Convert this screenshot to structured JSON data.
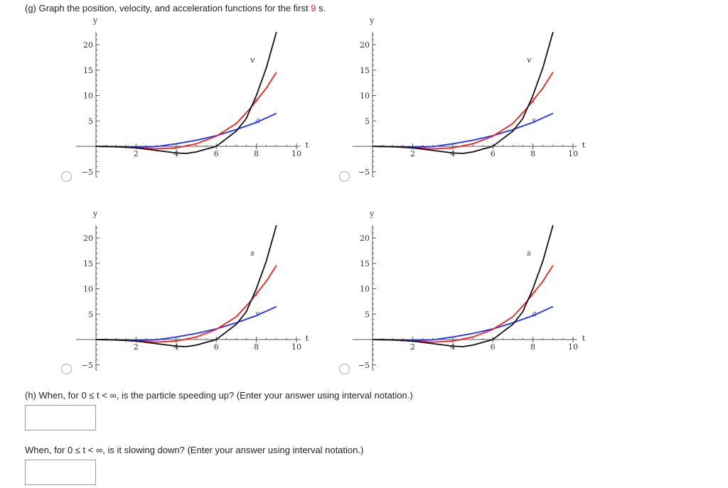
{
  "question_g": {
    "prefix": "(g) Graph the position, velocity, and acceleration functions for the first ",
    "highlight": "9",
    "suffix": " s."
  },
  "colors": {
    "black": "#111111",
    "red": "#f02020",
    "blue": "#2030f0"
  },
  "chart_data": [
    {
      "type": "line",
      "xlabel": "t",
      "ylabel": "y",
      "xticks": [
        2,
        4,
        6,
        8,
        10
      ],
      "yticks": [
        -5,
        5,
        10,
        15,
        20
      ],
      "xlim": [
        -1,
        10.2
      ],
      "ylim": [
        -6,
        22.5
      ],
      "curves": {
        "black": {
          "t": [
            0,
            1,
            2,
            3,
            4,
            4.5,
            5,
            6,
            7,
            7.5,
            8,
            8.5,
            9
          ],
          "y": [
            0,
            -0.05,
            -0.3,
            -0.8,
            -1.3,
            -1.4,
            -1.1,
            0,
            3,
            5.5,
            10,
            15.5,
            22.5
          ]
        },
        "red": {
          "t": [
            0,
            1,
            2,
            3,
            4,
            5,
            6,
            7,
            7.7,
            8,
            8.5,
            9
          ],
          "y": [
            0,
            -0.1,
            -0.3,
            -0.5,
            -0.3,
            0.5,
            2,
            4.5,
            7.5,
            9,
            11.5,
            14.6
          ]
        },
        "blue": {
          "t": [
            0,
            1,
            2,
            3,
            4,
            5,
            6,
            7,
            8,
            9
          ],
          "y": [
            0,
            -0.1,
            -0.2,
            -0.05,
            0.5,
            1.2,
            2.1,
            3.3,
            4.7,
            6.5
          ]
        }
      },
      "labels": {
        "black": "v",
        "red": "s",
        "blue": "a"
      }
    },
    {
      "labels": {
        "black": "v",
        "red": "a",
        "blue": "s"
      }
    },
    {
      "labels": {
        "black": "s",
        "red": "a",
        "blue": "v"
      }
    },
    {
      "labels": {
        "black": "s",
        "red": "v",
        "blue": "a"
      }
    }
  ],
  "question_h": {
    "text": "(h) When, for  0 ≤ t < ∞,  is the particle speeding up? (Enter your answer using interval notation.)",
    "value": ""
  },
  "question_slow": {
    "text": "When, for  0 ≤ t < ∞,  is it slowing down? (Enter your answer using interval notation.)",
    "value": ""
  }
}
